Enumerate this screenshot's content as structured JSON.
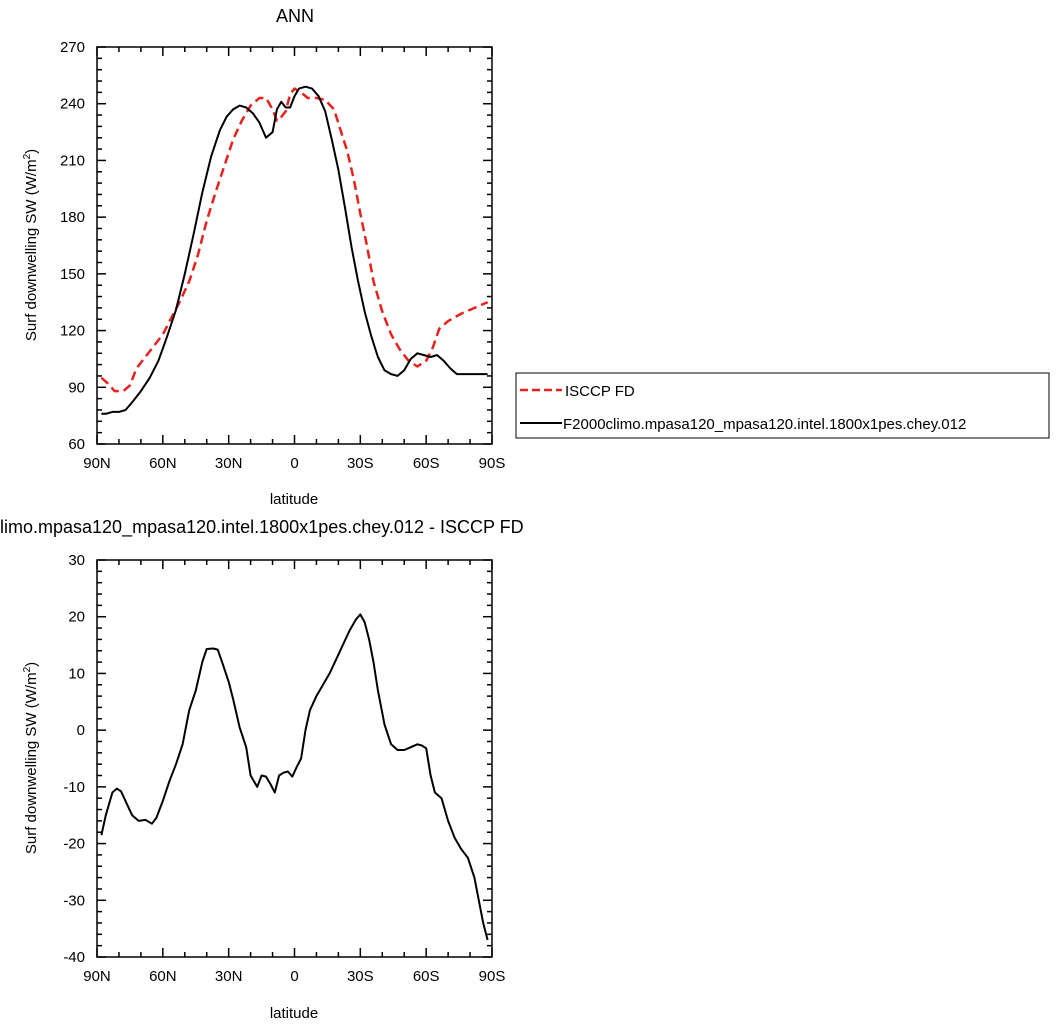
{
  "chart_data": [
    {
      "type": "line",
      "title": "ANN",
      "xlabel": "latitude",
      "ylabel": "Surf downwelling SW (W/m",
      "ylabel_sup": "2",
      "ylabel_close": ")",
      "xlim": [
        90,
        -90
      ],
      "ylim": [
        60,
        270
      ],
      "xticks": [
        {
          "value": 90,
          "label": "90N"
        },
        {
          "value": 60,
          "label": "60N"
        },
        {
          "value": 30,
          "label": "30N"
        },
        {
          "value": 0,
          "label": "0"
        },
        {
          "value": -30,
          "label": "30S"
        },
        {
          "value": -60,
          "label": "60S"
        },
        {
          "value": -90,
          "label": "90S"
        }
      ],
      "yticks": [
        60,
        90,
        120,
        150,
        180,
        210,
        240,
        270
      ],
      "legend_position": "right",
      "series": [
        {
          "name": "ISCCP FD",
          "color": "#e8211c",
          "dash": true,
          "x": [
            88,
            85,
            82,
            78,
            75,
            72,
            68,
            64,
            60,
            56,
            52,
            48,
            44,
            40,
            36,
            32,
            28,
            24,
            20,
            16,
            13,
            10,
            8,
            6,
            4,
            2,
            0,
            -3,
            -6,
            -10,
            -14,
            -18,
            -21,
            -24,
            -27,
            -30,
            -33,
            -36,
            -40,
            -44,
            -48,
            -52,
            -56,
            -60,
            -63,
            -66,
            -70,
            -73,
            -76,
            -80,
            -84,
            -88
          ],
          "y": [
            95,
            92,
            88,
            88,
            91,
            100,
            106,
            112,
            118,
            127,
            136,
            146,
            160,
            178,
            193,
            207,
            221,
            231,
            239,
            243,
            243,
            237,
            231,
            233,
            236,
            245,
            248,
            246,
            243,
            243,
            242,
            237,
            226,
            215,
            200,
            182,
            165,
            146,
            130,
            118,
            110,
            104,
            101,
            104,
            111,
            121,
            125,
            127,
            129,
            131,
            133,
            135
          ]
        },
        {
          "name": "F2000climo.mpasa120_mpasa120.intel.1800x1pes.chey.012",
          "color": "#000000",
          "dash": false,
          "x": [
            88,
            86,
            83,
            80,
            77,
            74,
            70,
            66,
            62,
            58,
            54,
            50,
            46,
            42,
            38,
            34,
            31,
            28,
            25,
            22,
            19,
            16,
            13,
            10,
            8,
            6,
            4,
            2,
            0,
            -2,
            -5,
            -8,
            -11,
            -14,
            -17,
            -20,
            -23,
            -26,
            -29,
            -32,
            -35,
            -38,
            -41,
            -44,
            -47,
            -50,
            -53,
            -56,
            -59,
            -62,
            -65,
            -68,
            -71,
            -74,
            -77,
            -80,
            -83,
            -86,
            -88
          ],
          "y": [
            76,
            76,
            77,
            77,
            78,
            82,
            88,
            95,
            104,
            117,
            131,
            150,
            171,
            193,
            212,
            226,
            233,
            237,
            239,
            238,
            235,
            230,
            222,
            225,
            237,
            241,
            238,
            238,
            244,
            248,
            249,
            248,
            244,
            236,
            221,
            205,
            185,
            164,
            146,
            130,
            117,
            106,
            99,
            97,
            96,
            99,
            105,
            108,
            107,
            106,
            107,
            104,
            100,
            97,
            97,
            97,
            97,
            97,
            97
          ]
        }
      ]
    },
    {
      "type": "line",
      "title": "limo.mpasa120_mpasa120.intel.1800x1pes.chey.012 - ISCCP FD",
      "xlabel": "latitude",
      "ylabel": "Surf downwelling SW (W/m",
      "ylabel_sup": "2",
      "ylabel_close": ")",
      "xlim": [
        90,
        -90
      ],
      "ylim": [
        -40,
        30
      ],
      "xticks": [
        {
          "value": 90,
          "label": "90N"
        },
        {
          "value": 60,
          "label": "60N"
        },
        {
          "value": 30,
          "label": "30N"
        },
        {
          "value": 0,
          "label": "0"
        },
        {
          "value": -30,
          "label": "30S"
        },
        {
          "value": -60,
          "label": "60S"
        },
        {
          "value": -90,
          "label": "90S"
        }
      ],
      "yticks": [
        -40,
        -30,
        -20,
        -10,
        0,
        10,
        20,
        30
      ],
      "series": [
        {
          "color": "#000000",
          "dash": false,
          "x": [
            88,
            86,
            83,
            81,
            79,
            77,
            74,
            71,
            68,
            65,
            63,
            60,
            57,
            54,
            51,
            48,
            45,
            42,
            40,
            37,
            35,
            33,
            30,
            28,
            25,
            22,
            20,
            17,
            15,
            13,
            11,
            9,
            7,
            5,
            3,
            1,
            -1,
            -3,
            -5,
            -7,
            -10,
            -13,
            -16,
            -19,
            -22,
            -25,
            -28,
            -30,
            -32,
            -34,
            -36,
            -38,
            -41,
            -44,
            -47,
            -50,
            -53,
            -56,
            -58,
            -60,
            -62,
            -64,
            -67,
            -70,
            -73,
            -76,
            -79,
            -82,
            -84,
            -86,
            -88
          ],
          "y": [
            -18.5,
            -15,
            -11,
            -10.3,
            -10.8,
            -12.5,
            -15,
            -16,
            -15.8,
            -16.5,
            -15.5,
            -12.5,
            -9,
            -6,
            -2.5,
            3.5,
            7,
            12,
            14.3,
            14.4,
            14.2,
            12,
            8.5,
            5.5,
            0.5,
            -3,
            -8,
            -10,
            -8,
            -8.2,
            -9.5,
            -11,
            -8,
            -7.5,
            -7.3,
            -8.2,
            -6.5,
            -5,
            0,
            3.5,
            6,
            8,
            10,
            12.5,
            15,
            17.5,
            19.5,
            20.4,
            19,
            16,
            12,
            7,
            1,
            -2.5,
            -3.5,
            -3.5,
            -3,
            -2.5,
            -2.7,
            -3.2,
            -8,
            -11,
            -12,
            -16,
            -19,
            -21,
            -22.5,
            -26,
            -30,
            -34,
            -37
          ]
        }
      ]
    }
  ]
}
